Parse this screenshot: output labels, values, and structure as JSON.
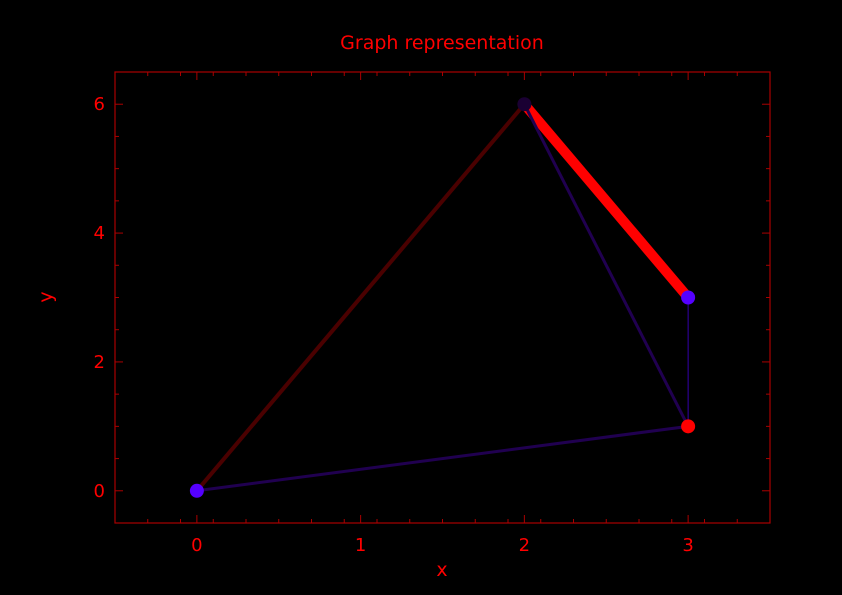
{
  "chart_data": {
    "type": "graph",
    "title": "Graph representation",
    "xlabel": "x",
    "ylabel": "y",
    "xlim": [
      -0.5,
      3.5
    ],
    "ylim": [
      -0.5,
      6.5
    ],
    "xticks": [
      0,
      1,
      2,
      3
    ],
    "yticks": [
      0,
      2,
      4,
      6
    ],
    "grid": false,
    "nodes": [
      {
        "x": 0,
        "y": 0,
        "color": "#5500ff"
      },
      {
        "x": 2,
        "y": 6,
        "color": "#1a0033"
      },
      {
        "x": 3,
        "y": 3,
        "color": "#5500ff"
      },
      {
        "x": 3,
        "y": 1,
        "color": "#ff0000"
      }
    ],
    "edges": [
      {
        "from": 0,
        "to": 1,
        "weight": 4,
        "color": "#4a0000"
      },
      {
        "from": 1,
        "to": 2,
        "weight": 10,
        "color": "#ff0000"
      },
      {
        "from": 1,
        "to": 3,
        "weight": 3,
        "color": "#200050"
      },
      {
        "from": 3,
        "to": 0,
        "weight": 3,
        "color": "#200050"
      },
      {
        "from": 2,
        "to": 3,
        "weight": 1,
        "color": "#3300aa"
      }
    ]
  },
  "colors": {
    "background": "#000000",
    "text": "#ff0000",
    "axes": "#aa0000"
  }
}
